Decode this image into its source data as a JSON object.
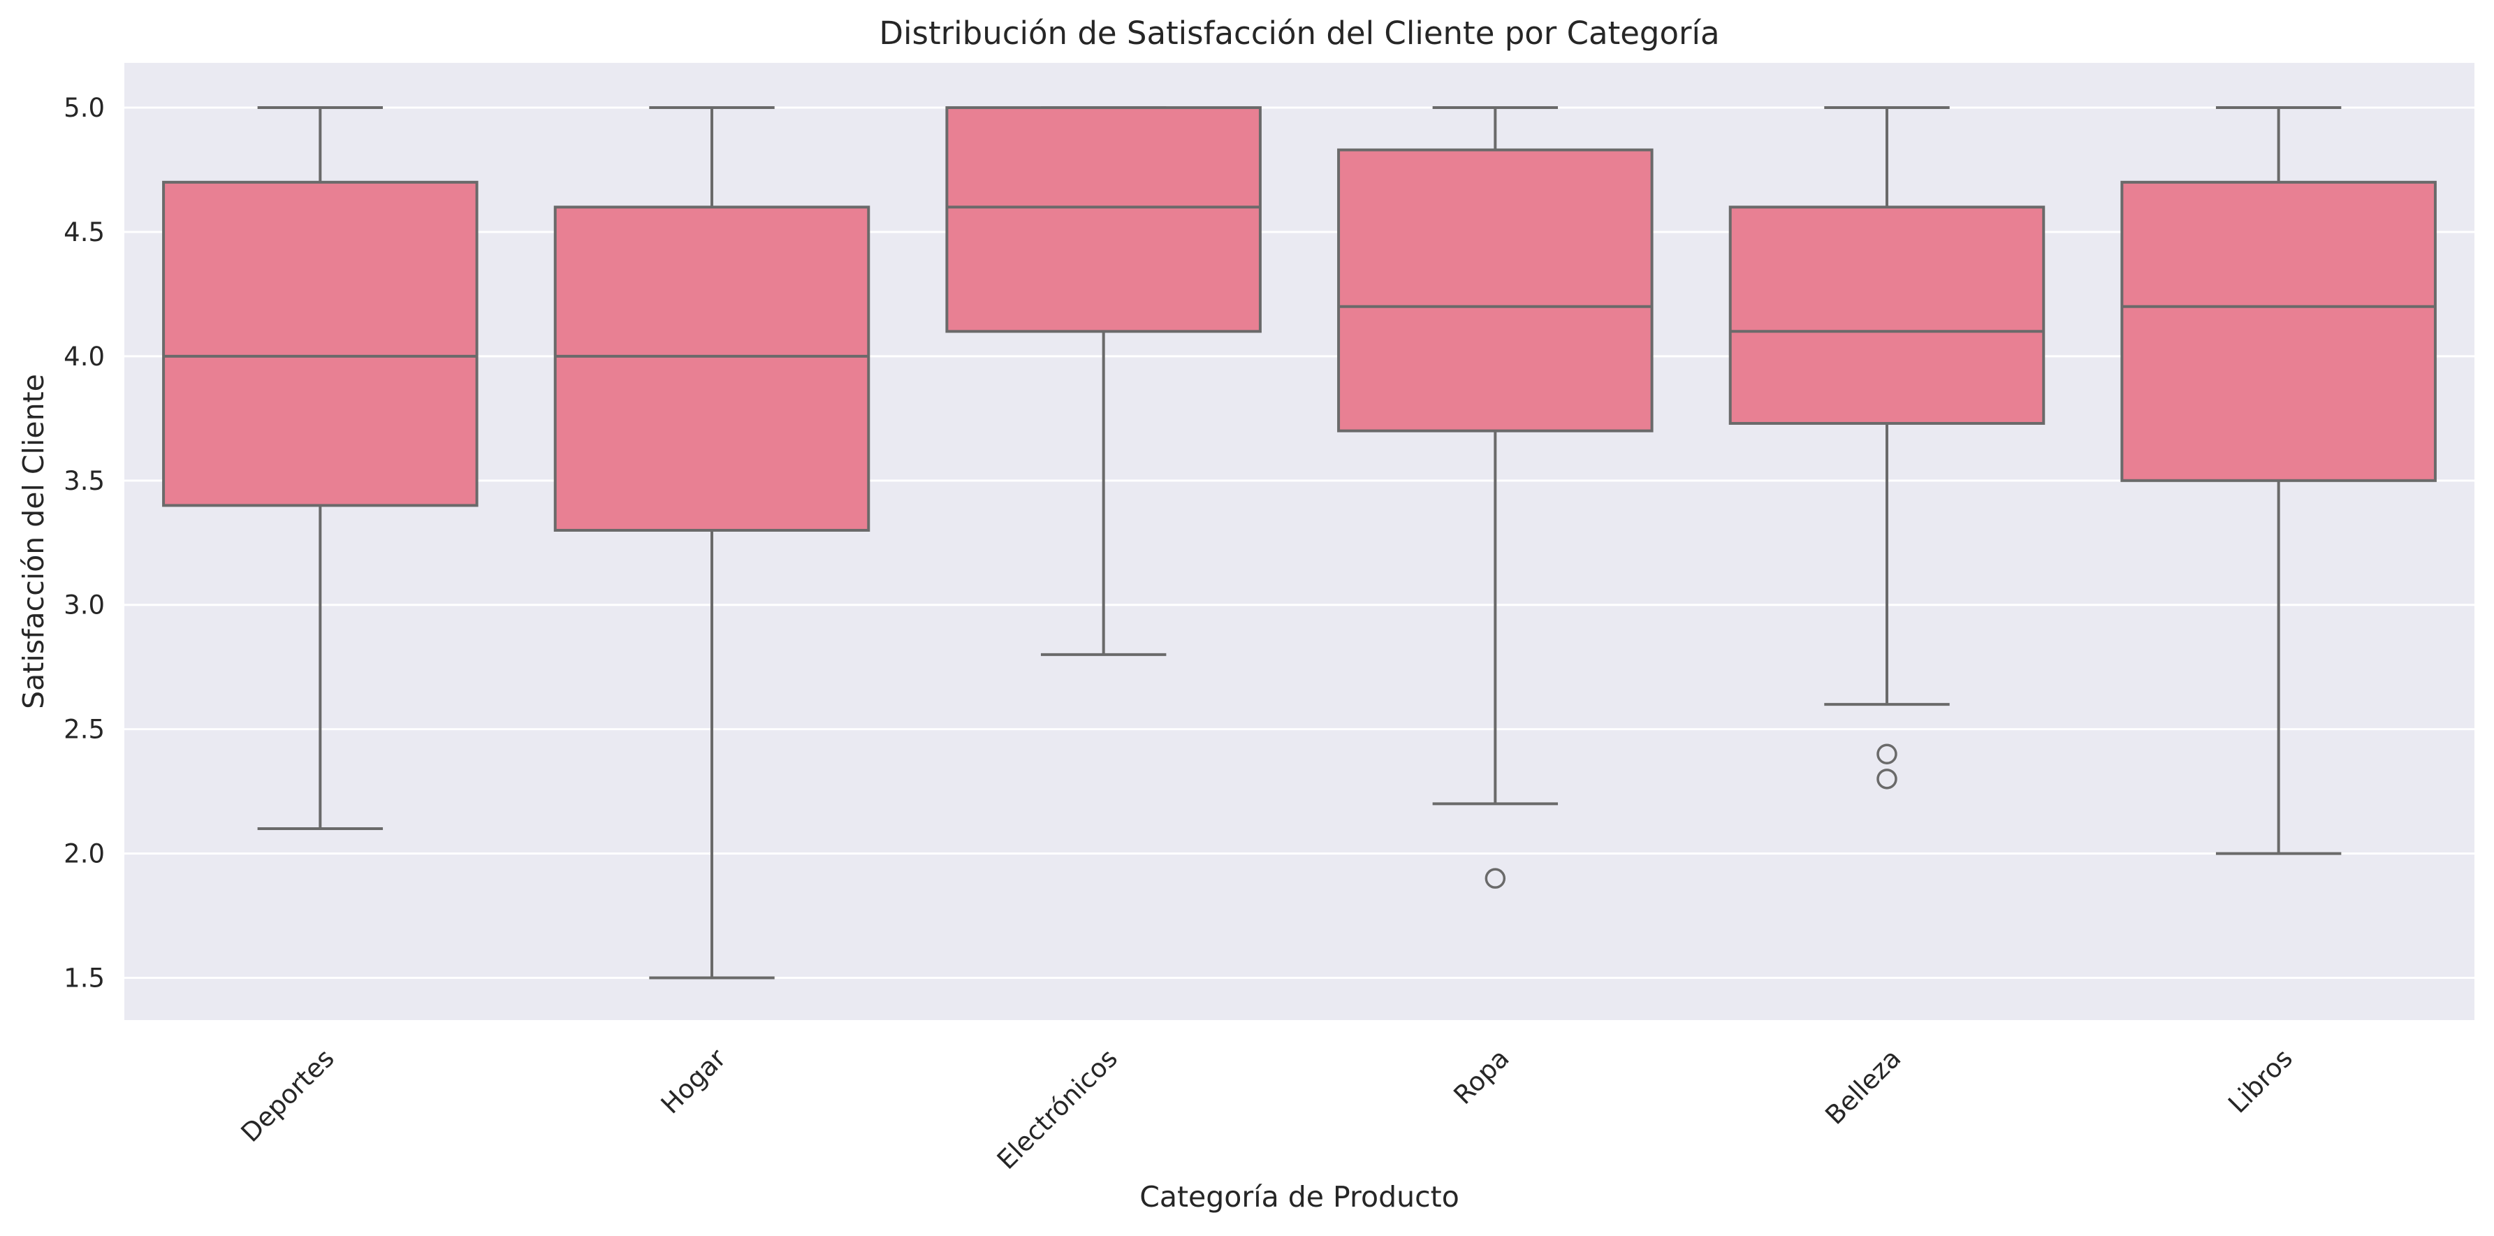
{
  "chart_data": {
    "type": "boxplot",
    "title": "Distribución de Satisfacción del Cliente por Categoría",
    "xlabel": "Categoría de Producto",
    "ylabel": "Satisfacción del Cliente",
    "ylim": [
      1.33,
      5.18
    ],
    "yticks": [
      "1.5",
      "2.0",
      "2.5",
      "3.0",
      "3.5",
      "4.0",
      "4.5",
      "5.0"
    ],
    "grid": "horizontal",
    "box_color": "#e88093",
    "line_color": "#6a6a6a",
    "background_color": "#eaeaf2",
    "categories": [
      "Deportes",
      "Hogar",
      "Electrónicos",
      "Ropa",
      "Belleza",
      "Libros"
    ],
    "boxes": [
      {
        "category": "Deportes",
        "whisker_low": 2.1,
        "q1": 3.4,
        "median": 4.0,
        "q3": 4.7,
        "whisker_high": 5.0,
        "outliers": []
      },
      {
        "category": "Hogar",
        "whisker_low": 1.5,
        "q1": 3.3,
        "median": 4.0,
        "q3": 4.6,
        "whisker_high": 5.0,
        "outliers": []
      },
      {
        "category": "Electrónicos",
        "whisker_low": 2.8,
        "q1": 4.1,
        "median": 4.6,
        "q3": 5.0,
        "whisker_high": 5.0,
        "outliers": []
      },
      {
        "category": "Ropa",
        "whisker_low": 2.2,
        "q1": 3.7,
        "median": 4.2,
        "q3": 4.83,
        "whisker_high": 5.0,
        "outliers": [
          1.9
        ]
      },
      {
        "category": "Belleza",
        "whisker_low": 2.6,
        "q1": 3.73,
        "median": 4.1,
        "q3": 4.6,
        "whisker_high": 5.0,
        "outliers": [
          2.4,
          2.3
        ]
      },
      {
        "category": "Libros",
        "whisker_low": 2.0,
        "q1": 3.5,
        "median": 4.2,
        "q3": 4.7,
        "whisker_high": 5.0,
        "outliers": []
      }
    ]
  }
}
